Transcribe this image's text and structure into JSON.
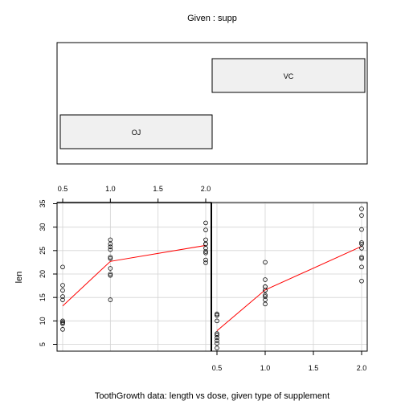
{
  "chart_data": {
    "type": "scatter",
    "given_title": "Given : supp",
    "xlabel": "ToothGrowth data: length vs dose, given type of supplement",
    "ylabel": "len",
    "xlim": [
      0.5,
      2.0
    ],
    "ylim": [
      5,
      35
    ],
    "x_ticks": [
      "0.5",
      "1.0",
      "1.5",
      "2.0"
    ],
    "y_ticks": [
      "5",
      "10",
      "15",
      "20",
      "25",
      "30",
      "35"
    ],
    "grid": true,
    "smooth_color": "#ff0000",
    "point_color": "#000000",
    "given_levels": [
      {
        "label": "OJ",
        "fill": "#f0f0f0"
      },
      {
        "label": "VC",
        "fill": "#f0f0f0"
      }
    ],
    "panels": [
      {
        "level": "OJ",
        "points": [
          [
            0.5,
            15.2
          ],
          [
            0.5,
            21.5
          ],
          [
            0.5,
            17.6
          ],
          [
            0.5,
            9.7
          ],
          [
            0.5,
            14.5
          ],
          [
            0.5,
            10.0
          ],
          [
            0.5,
            8.2
          ],
          [
            0.5,
            9.4
          ],
          [
            0.5,
            16.5
          ],
          [
            0.5,
            9.7
          ],
          [
            1.0,
            19.7
          ],
          [
            1.0,
            23.3
          ],
          [
            1.0,
            23.6
          ],
          [
            1.0,
            26.4
          ],
          [
            1.0,
            20.0
          ],
          [
            1.0,
            25.2
          ],
          [
            1.0,
            25.8
          ],
          [
            1.0,
            21.2
          ],
          [
            1.0,
            14.5
          ],
          [
            1.0,
            27.3
          ],
          [
            2.0,
            25.5
          ],
          [
            2.0,
            26.4
          ],
          [
            2.0,
            22.4
          ],
          [
            2.0,
            24.5
          ],
          [
            2.0,
            24.8
          ],
          [
            2.0,
            30.9
          ],
          [
            2.0,
            26.4
          ],
          [
            2.0,
            27.3
          ],
          [
            2.0,
            29.4
          ],
          [
            2.0,
            23.0
          ]
        ],
        "smooth": [
          [
            0.5,
            13.2
          ],
          [
            1.0,
            22.7
          ],
          [
            2.0,
            26.1
          ]
        ]
      },
      {
        "level": "VC",
        "points": [
          [
            0.5,
            4.2
          ],
          [
            0.5,
            11.5
          ],
          [
            0.5,
            7.3
          ],
          [
            0.5,
            5.8
          ],
          [
            0.5,
            6.4
          ],
          [
            0.5,
            10.0
          ],
          [
            0.5,
            11.2
          ],
          [
            0.5,
            11.2
          ],
          [
            0.5,
            5.2
          ],
          [
            0.5,
            7.0
          ],
          [
            1.0,
            16.5
          ],
          [
            1.0,
            16.5
          ],
          [
            1.0,
            15.2
          ],
          [
            1.0,
            17.3
          ],
          [
            1.0,
            22.5
          ],
          [
            1.0,
            17.3
          ],
          [
            1.0,
            13.6
          ],
          [
            1.0,
            14.5
          ],
          [
            1.0,
            18.8
          ],
          [
            1.0,
            15.5
          ],
          [
            2.0,
            23.6
          ],
          [
            2.0,
            18.5
          ],
          [
            2.0,
            33.9
          ],
          [
            2.0,
            25.5
          ],
          [
            2.0,
            26.4
          ],
          [
            2.0,
            32.5
          ],
          [
            2.0,
            26.7
          ],
          [
            2.0,
            21.5
          ],
          [
            2.0,
            23.3
          ],
          [
            2.0,
            29.5
          ]
        ],
        "smooth": [
          [
            0.5,
            7.9
          ],
          [
            1.0,
            16.6
          ],
          [
            2.0,
            25.9
          ]
        ]
      }
    ]
  }
}
